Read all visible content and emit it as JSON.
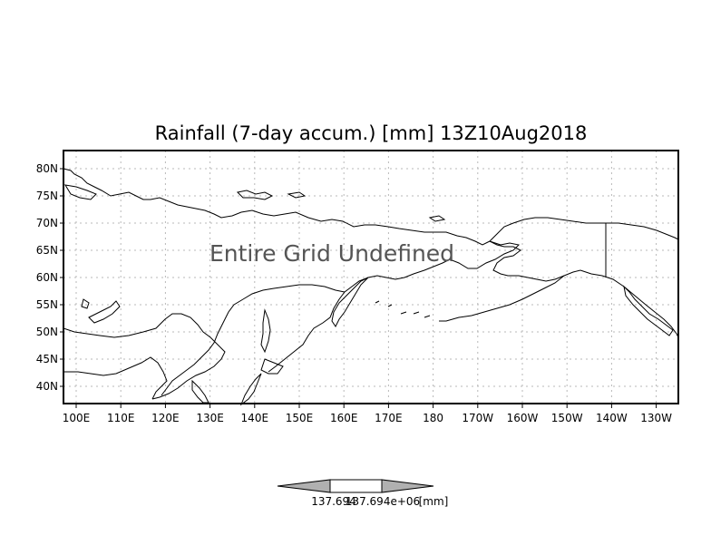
{
  "title": "Rainfall (7-day accum.) [mm] 13Z10Aug2018",
  "message": "Entire Grid Undefined",
  "latitude_labels": [
    "80N",
    "75N",
    "70N",
    "65N",
    "60N",
    "55N",
    "50N",
    "45N",
    "40N"
  ],
  "longitude_labels": [
    "100E",
    "110E",
    "120E",
    "130E",
    "140E",
    "150E",
    "160E",
    "170E",
    "180",
    "170W",
    "160W",
    "150W",
    "140W",
    "130W"
  ],
  "colorbar": {
    "low_label": "137.694",
    "high_label": "137.694e+06",
    "units": "[mm]",
    "colors": [
      "#b0b0b0",
      "#ffffff",
      "#b0b0b0"
    ]
  }
}
